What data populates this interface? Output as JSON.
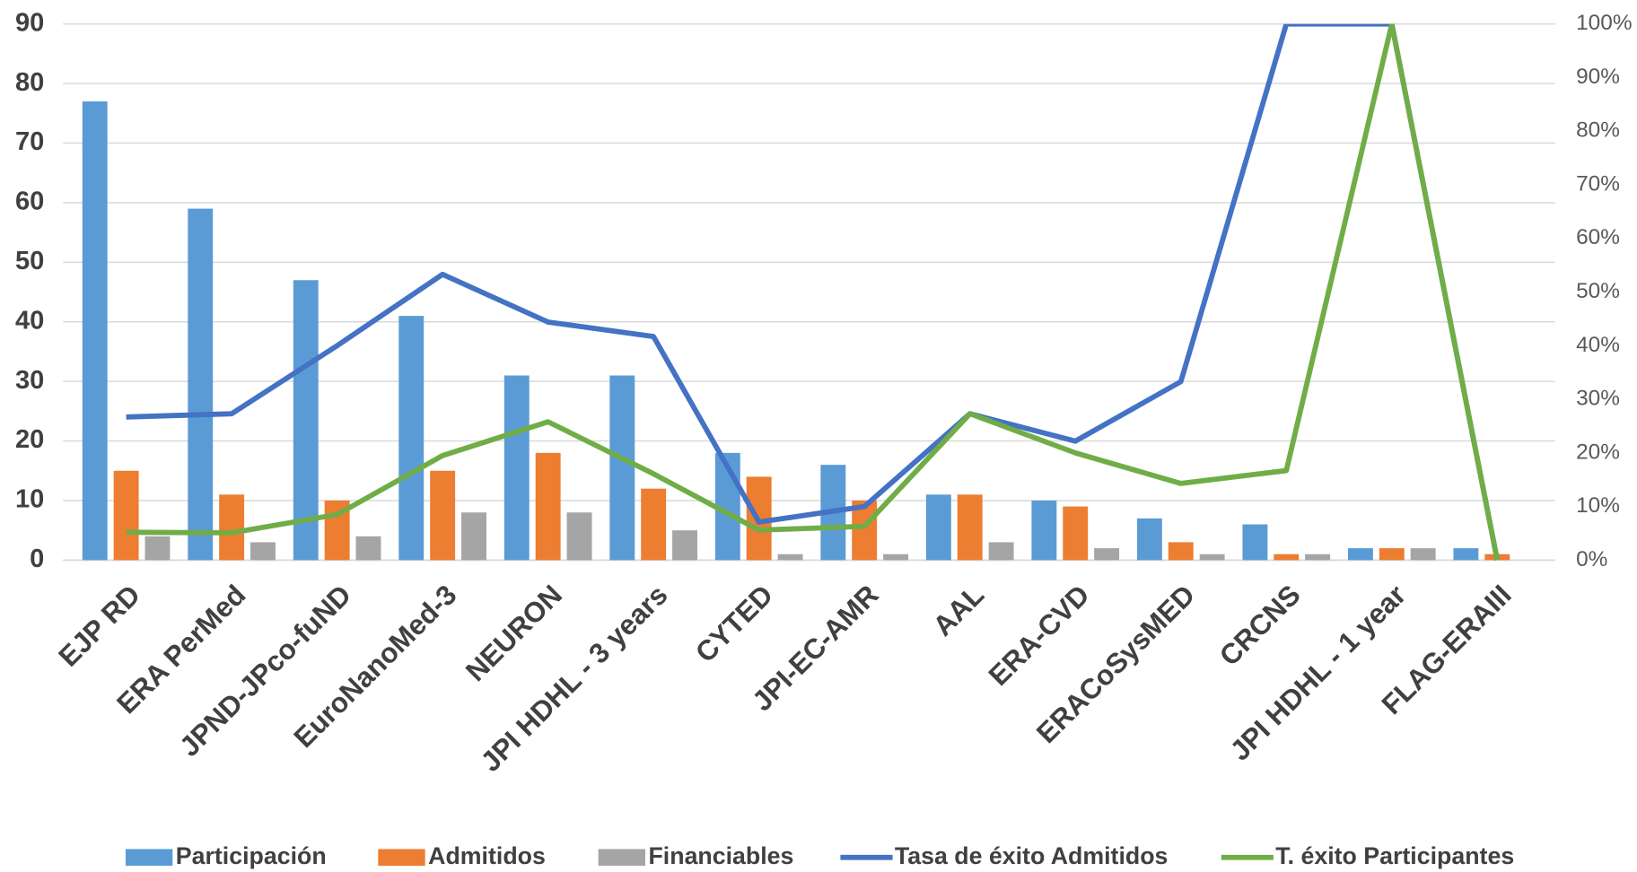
{
  "chart_data": {
    "type": "bar-line",
    "categories": [
      "EJP RD",
      "ERA PerMed",
      "JPND-JPco-fuND",
      "EuroNanoMed-3",
      "NEURON",
      "JPI HDHL - 3 years",
      "CYTED",
      "JPI-EC-AMR",
      "AAL",
      "ERA-CVD",
      "ERACoSysMED",
      "CRCNS",
      "JPI HDHL - 1 year",
      "FLAG-ERAIII"
    ],
    "series": [
      {
        "name": "Participación",
        "type": "bar",
        "color": "#5b9bd5",
        "values": [
          77,
          59,
          47,
          41,
          31,
          31,
          18,
          16,
          11,
          10,
          7,
          6,
          2,
          2
        ]
      },
      {
        "name": "Admitidos",
        "type": "bar",
        "color": "#ed7d31",
        "values": [
          15,
          11,
          10,
          15,
          18,
          12,
          14,
          10,
          11,
          9,
          3,
          1,
          2,
          1
        ]
      },
      {
        "name": "Financiables",
        "type": "bar",
        "color": "#a5a5a5",
        "values": [
          4,
          3,
          4,
          8,
          8,
          5,
          1,
          1,
          3,
          2,
          1,
          1,
          2,
          0
        ]
      },
      {
        "name": "Tasa de éxito Admitidos",
        "type": "line",
        "axis": "y2",
        "color": "#4472c4",
        "values": [
          26.7,
          27.3,
          40,
          53.3,
          44.4,
          41.7,
          7.1,
          10,
          27.3,
          22.2,
          33.3,
          100,
          100,
          0
        ]
      },
      {
        "name": "T. éxito Participantes",
        "type": "line",
        "axis": "y2",
        "color": "#70ad47",
        "values": [
          5.2,
          5.1,
          8.5,
          19.5,
          25.8,
          16.1,
          5.6,
          6.3,
          27.3,
          20,
          14.3,
          16.7,
          100,
          0
        ]
      }
    ],
    "ylim": [
      0,
      90
    ],
    "yticks": [
      0,
      10,
      20,
      30,
      40,
      50,
      60,
      70,
      80,
      90
    ],
    "y2lim": [
      0,
      100
    ],
    "y2ticks": [
      {
        "value": 0,
        "label": "0%"
      },
      {
        "value": 10,
        "label": "10%"
      },
      {
        "value": 20,
        "label": "20%"
      },
      {
        "value": 30,
        "label": "30%"
      },
      {
        "value": 40,
        "label": "40%"
      },
      {
        "value": 50,
        "label": "50%"
      },
      {
        "value": 60,
        "label": "60%"
      },
      {
        "value": 70,
        "label": "70%"
      },
      {
        "value": 80,
        "label": "80%"
      },
      {
        "value": 90,
        "label": "90%"
      },
      {
        "value": 100,
        "label": "100%"
      }
    ],
    "grid": true,
    "legend": "bottom"
  }
}
